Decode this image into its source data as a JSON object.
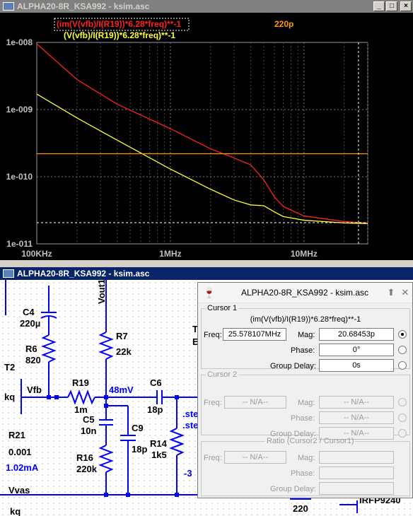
{
  "plot_window": {
    "title": "ALPHA20-8R_KSA992 - ksim.asc",
    "trace_red_label": "(im(V(vfb)/I(R19))*6.28*freq)**-1",
    "trace_yellow_label": "(V(vfb)/I(R19))*6.28*freq)**-1",
    "trace_orange_label": "220p",
    "colors": {
      "red": "#ff2020",
      "yellow": "#ffff30",
      "orange": "#ff9a00",
      "grid": "#7a7a7a",
      "axis_text": "#c0c0c0"
    }
  },
  "chart_data": {
    "type": "line",
    "x_scale": "log",
    "y_scale": "log",
    "xlim": [
      100000,
      30000000
    ],
    "ylim": [
      1e-11,
      1e-08
    ],
    "y_tick_labels": [
      "1e-008",
      "1e-009",
      "1e-010",
      "1e-011"
    ],
    "x_tick_labels": [
      "100KHz",
      "1MHz",
      "10MHz"
    ],
    "series": [
      {
        "name": "(im(V(vfb)/I(R19))*6.28*freq)**-1",
        "color": "#ff2020",
        "x": [
          100000,
          200000,
          400000,
          1000000,
          2000000,
          3000000,
          4000000,
          5000000,
          6000000,
          7000000,
          10000000,
          20000000,
          30000000
        ],
        "y": [
          9.5e-09,
          2.8e-09,
          1.2e-09,
          5.2e-10,
          2.6e-10,
          1.9e-10,
          1.5e-10,
          9e-11,
          5e-11,
          3.6e-11,
          2.6e-11,
          2.15e-11,
          2.05e-11
        ]
      },
      {
        "name": "(V(vfb)/I(R19))*6.28*freq)**-1",
        "color": "#ffff30",
        "x": [
          100000,
          200000,
          400000,
          1000000,
          2000000,
          3000000,
          4000000,
          5000000,
          6000000,
          7000000,
          10000000,
          20000000,
          30000000
        ],
        "y": [
          1.7e-09,
          7.5e-10,
          3.5e-10,
          1.3e-10,
          6.5e-11,
          4.5e-11,
          3.8e-11,
          3.7e-11,
          3e-11,
          2.55e-11,
          2.25e-11,
          2.05e-11,
          2e-11
        ]
      },
      {
        "name": "220p",
        "color": "#ff9a00",
        "x": [
          100000,
          30000000
        ],
        "y": [
          2.2e-10,
          2.2e-10
        ]
      }
    ],
    "cursor": {
      "x": 25578107,
      "y": 2.068453e-11
    }
  },
  "schematic_window": {
    "title": "ALPHA20-8R_KSA992 - ksim.asc",
    "labels": {
      "c4": "C4",
      "c4v": "220µ",
      "vout1": "Vout1",
      "r7": "R7",
      "r7v": "22k",
      "r6": "R6",
      "r6v": "820",
      "t2": "T2",
      "vfb": "Vfb",
      "r19": "R19",
      "r19v": "1m",
      "mv": "48mV",
      "c6": "C6",
      "c6v": "18p",
      "kq": "kq",
      "c5": "C5",
      "c5v": "10n",
      "c9": "C9",
      "c9v": "18p",
      "r21": "R21",
      "r21v": "0.001",
      "ma": "1.02mA",
      "r14": "R14",
      "r14v": "1k5",
      "r16": "R16",
      "r16v": "220k",
      "vvas": "Vvas",
      "kq2": "kq",
      "n220": "220",
      "irfp": "IRFP9240",
      "ste1": ".ste",
      "ste2": ".ste",
      "m3": "-3",
      "t": "T",
      "e": "E"
    }
  },
  "cursor_dialog": {
    "title": "ALPHA20-8R_KSA992 - ksim.asc",
    "cursor1": {
      "legend": "Cursor 1",
      "expr": "(im(V(vfb)/I(R19))*6.28*freq)**-1",
      "freq_label": "Freq:",
      "freq_value": "25.578107MHz",
      "mag_label": "Mag:",
      "mag_value": "20.68453p",
      "phase_label": "Phase:",
      "phase_value": "0°",
      "gd_label": "Group Delay:",
      "gd_value": "0s"
    },
    "cursor2": {
      "legend": "Cursor 2",
      "freq_label": "Freq:",
      "freq_value": "-- N/A--",
      "mag_label": "Mag:",
      "mag_value": "-- N/A--",
      "phase_label": "Phase:",
      "phase_value": "-- N/A--",
      "gd_label": "Group Delay:",
      "gd_value": "-- N/A--"
    },
    "ratio": {
      "legend": "Ratio (Cursor2 / Cursor1)",
      "freq_label": "Freq:",
      "freq_value": "-- N/A--",
      "mag_label": "Mag:",
      "mag_value": "",
      "phase_label": "Phase:",
      "phase_value": "",
      "gd_label": "Group Delay:",
      "gd_value": ""
    }
  }
}
